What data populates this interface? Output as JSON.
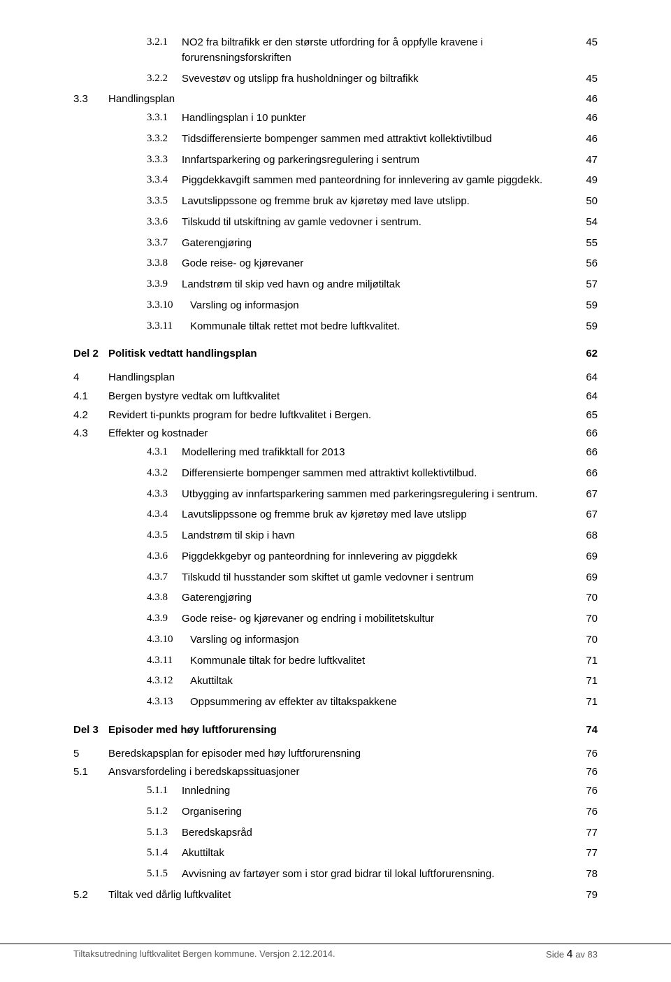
{
  "toc": [
    {
      "level": 3,
      "num": "3.2.1",
      "text": "NO2 fra biltrafikk er den største utfordring for å oppfylle kravene i forurensningsforskriften",
      "page": "45"
    },
    {
      "level": 3,
      "num": "3.2.2",
      "text": "Svevestøv og utslipp fra husholdninger og biltrafikk",
      "page": "45"
    },
    {
      "level": 2,
      "num": "3.3",
      "text": "Handlingsplan",
      "page": "46"
    },
    {
      "level": 3,
      "num": "3.3.1",
      "text": "Handlingsplan i 10 punkter",
      "page": "46"
    },
    {
      "level": 3,
      "num": "3.3.2",
      "text": "Tidsdifferensierte bompenger sammen med attraktivt kollektivtilbud",
      "page": "46"
    },
    {
      "level": 3,
      "num": "3.3.3",
      "text": "Innfartsparkering og parkeringsregulering i sentrum",
      "page": "47"
    },
    {
      "level": 3,
      "num": "3.3.4",
      "text": "Piggdekkavgift sammen med panteordning for innlevering av gamle piggdekk.",
      "page": "49"
    },
    {
      "level": 3,
      "num": "3.3.5",
      "text": "Lavutslippssone og fremme bruk av kjøretøy med lave utslipp.",
      "page": "50"
    },
    {
      "level": 3,
      "num": "3.3.6",
      "text": "Tilskudd til utskiftning av gamle vedovner i sentrum.",
      "page": "54"
    },
    {
      "level": 3,
      "num": "3.3.7",
      "text": "Gaterengjøring",
      "page": "55"
    },
    {
      "level": 3,
      "num": "3.3.8",
      "text": "Gode reise- og kjørevaner",
      "page": "56"
    },
    {
      "level": 3,
      "num": "3.3.9",
      "text": "Landstrøm til skip ved havn og andre miljøtiltak",
      "page": "57"
    },
    {
      "level": 3,
      "wide": true,
      "num": "3.3.10",
      "text": "Varsling og informasjon",
      "page": "59"
    },
    {
      "level": 3,
      "wide": true,
      "num": "3.3.11",
      "text": "Kommunale tiltak rettet mot bedre luftkvalitet.",
      "page": "59"
    },
    {
      "level": "part",
      "num": "Del 2",
      "text": "Politisk vedtatt handlingsplan",
      "page": "62"
    },
    {
      "level": 1,
      "num": "4",
      "text": "Handlingsplan",
      "page": "64"
    },
    {
      "level": 2,
      "num": "4.1",
      "text": "Bergen bystyre vedtak om luftkvalitet",
      "page": "64"
    },
    {
      "level": 2,
      "num": "4.2",
      "text": "Revidert ti-punkts program for bedre luftkvalitet i Bergen.",
      "page": "65"
    },
    {
      "level": 2,
      "num": "4.3",
      "text": "Effekter og kostnader",
      "page": "66"
    },
    {
      "level": 3,
      "num": "4.3.1",
      "text": "Modellering med trafikktall for 2013",
      "page": "66"
    },
    {
      "level": 3,
      "num": "4.3.2",
      "text": "Differensierte bompenger sammen med attraktivt kollektivtilbud.",
      "page": "66"
    },
    {
      "level": 3,
      "num": "4.3.3",
      "text": "Utbygging av innfartsparkering sammen med parkeringsregulering i sentrum.",
      "page": "67"
    },
    {
      "level": 3,
      "num": "4.3.4",
      "text": "Lavutslippssone og fremme bruk av kjøretøy med lave utslipp",
      "page": "67"
    },
    {
      "level": 3,
      "num": "4.3.5",
      "text": "Landstrøm til skip i havn",
      "page": "68"
    },
    {
      "level": 3,
      "num": "4.3.6",
      "text": "Piggdekkgebyr og panteordning for innlevering av piggdekk",
      "page": "69"
    },
    {
      "level": 3,
      "num": "4.3.7",
      "text": "Tilskudd til husstander som skiftet ut gamle vedovner i sentrum",
      "page": "69"
    },
    {
      "level": 3,
      "num": "4.3.8",
      "text": "Gaterengjøring",
      "page": "70"
    },
    {
      "level": 3,
      "num": "4.3.9",
      "text": "Gode reise- og kjørevaner og endring i mobilitetskultur",
      "page": "70"
    },
    {
      "level": 3,
      "wide": true,
      "num": "4.3.10",
      "text": "Varsling og informasjon",
      "page": "70"
    },
    {
      "level": 3,
      "wide": true,
      "num": "4.3.11",
      "text": "Kommunale tiltak for bedre luftkvalitet",
      "page": "71"
    },
    {
      "level": 3,
      "wide": true,
      "num": "4.3.12",
      "text": "Akuttiltak",
      "page": "71"
    },
    {
      "level": 3,
      "wide": true,
      "num": "4.3.13",
      "text": "Oppsummering av effekter av tiltakspakkene",
      "page": "71"
    },
    {
      "level": "part",
      "num": "Del 3",
      "text": "Episoder med høy luftforurensing",
      "page": "74"
    },
    {
      "level": 1,
      "num": "5",
      "text": "Beredskapsplan for episoder med høy luftforurensning",
      "page": "76"
    },
    {
      "level": 2,
      "num": "5.1",
      "text": "Ansvarsfordeling i beredskapssituasjoner",
      "page": "76"
    },
    {
      "level": 3,
      "num": "5.1.1",
      "text": "Innledning",
      "page": "76"
    },
    {
      "level": 3,
      "num": "5.1.2",
      "text": "Organisering",
      "page": "76"
    },
    {
      "level": 3,
      "num": "5.1.3",
      "text": "Beredskapsråd",
      "page": "77"
    },
    {
      "level": 3,
      "num": "5.1.4",
      "text": "Akuttiltak",
      "page": "77"
    },
    {
      "level": 3,
      "num": "5.1.5",
      "text": "Avvisning av fartøyer som i stor grad bidrar til lokal luftforurensning.",
      "page": "78"
    },
    {
      "level": 2,
      "num": "5.2",
      "text": "Tiltak ved dårlig luftkvalitet",
      "page": "79"
    }
  ],
  "footer": {
    "left": "Tiltaksutredning luftkvalitet Bergen kommune. Versjon 2.12.2014.",
    "right_prefix": "Side ",
    "right_current": "4",
    "right_suffix": " av 83"
  }
}
